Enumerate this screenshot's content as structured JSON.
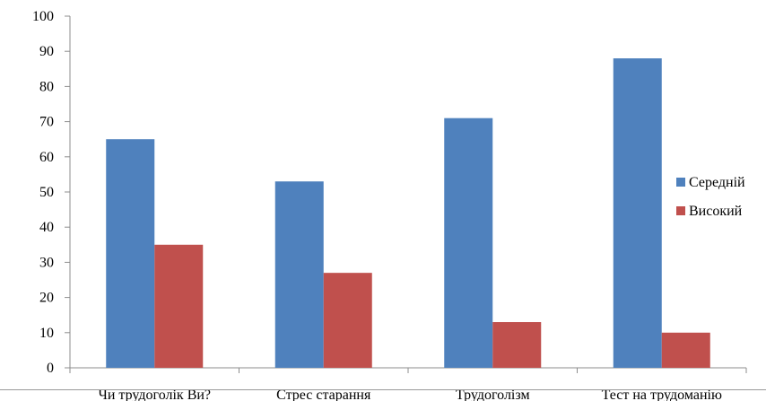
{
  "chart_data": {
    "type": "bar",
    "categories": [
      "Чи трудоголік Ви?",
      "Стрес старання",
      "Трудоголізм",
      "Тест на трудоманію"
    ],
    "series": [
      {
        "name": "Середній",
        "color": "#4f81bd",
        "values": [
          65,
          53,
          71,
          88
        ]
      },
      {
        "name": "Високий",
        "color": "#c0504d",
        "values": [
          35,
          27,
          13,
          10
        ]
      }
    ],
    "y_ticks": [
      0,
      10,
      20,
      30,
      40,
      50,
      60,
      70,
      80,
      90,
      100
    ],
    "ylim": [
      0,
      100
    ],
    "grid": false,
    "legend_position": "right"
  }
}
